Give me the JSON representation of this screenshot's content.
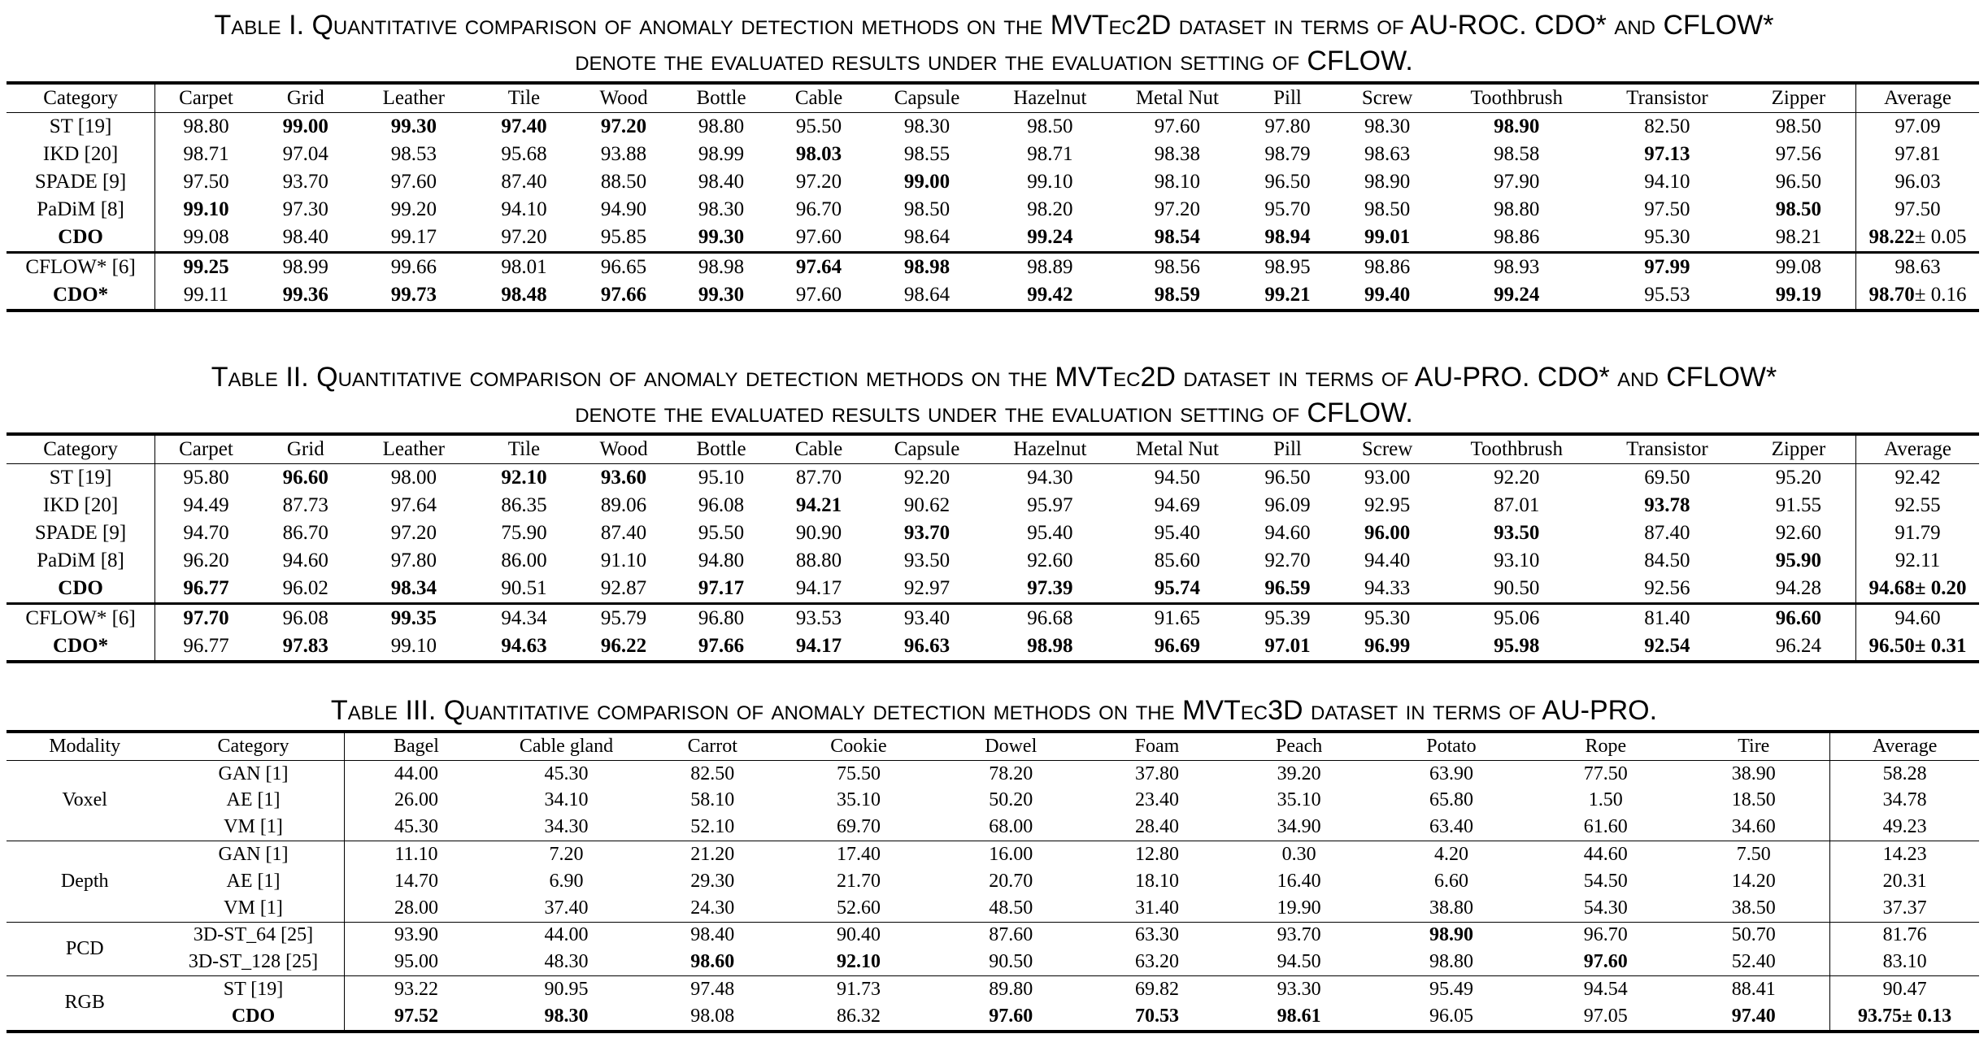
{
  "table1": {
    "caption_l1": "Table I. Quantitative comparison of anomaly detection methods on the MVTec2D dataset in terms of AU-ROC. CDO* and CFLOW*",
    "caption_l2": "denote the evaluated results under the evaluation setting of CFLOW.",
    "headers": [
      "Category",
      "Carpet",
      "Grid",
      "Leather",
      "Tile",
      "Wood",
      "Bottle",
      "Cable",
      "Capsule",
      "Hazelnut",
      "Metal Nut",
      "Pill",
      "Screw",
      "Toothbrush",
      "Transistor",
      "Zipper",
      "Average"
    ],
    "rows": [
      {
        "method": "ST [19]",
        "method_bold": false,
        "values": [
          "98.80",
          "99.00",
          "99.30",
          "97.40",
          "97.20",
          "98.80",
          "95.50",
          "98.30",
          "98.50",
          "97.60",
          "97.80",
          "98.30",
          "98.90",
          "82.50",
          "98.50"
        ],
        "bold": [
          false,
          true,
          true,
          true,
          true,
          false,
          false,
          false,
          false,
          false,
          false,
          false,
          true,
          false,
          false
        ],
        "avg": "97.09",
        "avg_std": "",
        "avg_bold": false
      },
      {
        "method": "IKD [20]",
        "method_bold": false,
        "values": [
          "98.71",
          "97.04",
          "98.53",
          "95.68",
          "93.88",
          "98.99",
          "98.03",
          "98.55",
          "98.71",
          "98.38",
          "98.79",
          "98.63",
          "98.58",
          "97.13",
          "97.56"
        ],
        "bold": [
          false,
          false,
          false,
          false,
          false,
          false,
          true,
          false,
          false,
          false,
          false,
          false,
          false,
          true,
          false
        ],
        "avg": "97.81",
        "avg_std": "",
        "avg_bold": false
      },
      {
        "method": "SPADE [9]",
        "method_bold": false,
        "values": [
          "97.50",
          "93.70",
          "97.60",
          "87.40",
          "88.50",
          "98.40",
          "97.20",
          "99.00",
          "99.10",
          "98.10",
          "96.50",
          "98.90",
          "97.90",
          "94.10",
          "96.50"
        ],
        "bold": [
          false,
          false,
          false,
          false,
          false,
          false,
          false,
          true,
          false,
          false,
          false,
          false,
          false,
          false,
          false
        ],
        "avg": "96.03",
        "avg_std": "",
        "avg_bold": false
      },
      {
        "method": "PaDiM [8]",
        "method_bold": false,
        "values": [
          "99.10",
          "97.30",
          "99.20",
          "94.10",
          "94.90",
          "98.30",
          "96.70",
          "98.50",
          "98.20",
          "97.20",
          "95.70",
          "98.50",
          "98.80",
          "97.50",
          "98.50"
        ],
        "bold": [
          true,
          false,
          false,
          false,
          false,
          false,
          false,
          false,
          false,
          false,
          false,
          false,
          false,
          false,
          true
        ],
        "avg": "97.50",
        "avg_std": "",
        "avg_bold": false
      },
      {
        "method": "CDO",
        "method_bold": true,
        "values": [
          "99.08",
          "98.40",
          "99.17",
          "97.20",
          "95.85",
          "99.30",
          "97.60",
          "98.64",
          "99.24",
          "98.54",
          "98.94",
          "99.01",
          "98.86",
          "95.30",
          "98.21"
        ],
        "bold": [
          false,
          false,
          false,
          false,
          false,
          true,
          false,
          false,
          true,
          true,
          true,
          true,
          false,
          false,
          false
        ],
        "avg": "98.22",
        "avg_std": "± 0.05",
        "avg_bold": true
      }
    ],
    "rows2": [
      {
        "method": "CFLOW* [6]",
        "method_bold": false,
        "values": [
          "99.25",
          "98.99",
          "99.66",
          "98.01",
          "96.65",
          "98.98",
          "97.64",
          "98.98",
          "98.89",
          "98.56",
          "98.95",
          "98.86",
          "98.93",
          "97.99",
          "99.08"
        ],
        "bold": [
          true,
          false,
          false,
          false,
          false,
          false,
          true,
          true,
          false,
          false,
          false,
          false,
          false,
          true,
          false
        ],
        "avg": "98.63",
        "avg_std": "",
        "avg_bold": false
      },
      {
        "method": "CDO*",
        "method_bold": true,
        "values": [
          "99.11",
          "99.36",
          "99.73",
          "98.48",
          "97.66",
          "99.30",
          "97.60",
          "98.64",
          "99.42",
          "98.59",
          "99.21",
          "99.40",
          "99.24",
          "95.53",
          "99.19"
        ],
        "bold": [
          false,
          true,
          true,
          true,
          true,
          true,
          false,
          false,
          true,
          true,
          true,
          true,
          true,
          false,
          true
        ],
        "avg": "98.70",
        "avg_std": "± 0.16",
        "avg_bold": true
      }
    ]
  },
  "table2": {
    "caption_l1": "Table II. Quantitative comparison of anomaly detection methods on the MVTec2D dataset in terms of AU-PRO. CDO* and CFLOW*",
    "caption_l2": "denote the evaluated results under the evaluation setting of CFLOW.",
    "headers": [
      "Category",
      "Carpet",
      "Grid",
      "Leather",
      "Tile",
      "Wood",
      "Bottle",
      "Cable",
      "Capsule",
      "Hazelnut",
      "Metal Nut",
      "Pill",
      "Screw",
      "Toothbrush",
      "Transistor",
      "Zipper",
      "Average"
    ],
    "rows": [
      {
        "method": "ST [19]",
        "method_bold": false,
        "values": [
          "95.80",
          "96.60",
          "98.00",
          "92.10",
          "93.60",
          "95.10",
          "87.70",
          "92.20",
          "94.30",
          "94.50",
          "96.50",
          "93.00",
          "92.20",
          "69.50",
          "95.20"
        ],
        "bold": [
          false,
          true,
          false,
          true,
          true,
          false,
          false,
          false,
          false,
          false,
          false,
          false,
          false,
          false,
          false
        ],
        "avg": "92.42",
        "avg_std": "",
        "avg_bold": false
      },
      {
        "method": "IKD [20]",
        "method_bold": false,
        "values": [
          "94.49",
          "87.73",
          "97.64",
          "86.35",
          "89.06",
          "96.08",
          "94.21",
          "90.62",
          "95.97",
          "94.69",
          "96.09",
          "92.95",
          "87.01",
          "93.78",
          "91.55"
        ],
        "bold": [
          false,
          false,
          false,
          false,
          false,
          false,
          true,
          false,
          false,
          false,
          false,
          false,
          false,
          true,
          false
        ],
        "avg": "92.55",
        "avg_std": "",
        "avg_bold": false
      },
      {
        "method": "SPADE [9]",
        "method_bold": false,
        "values": [
          "94.70",
          "86.70",
          "97.20",
          "75.90",
          "87.40",
          "95.50",
          "90.90",
          "93.70",
          "95.40",
          "95.40",
          "94.60",
          "96.00",
          "93.50",
          "87.40",
          "92.60"
        ],
        "bold": [
          false,
          false,
          false,
          false,
          false,
          false,
          false,
          true,
          false,
          false,
          false,
          true,
          true,
          false,
          false
        ],
        "avg": "91.79",
        "avg_std": "",
        "avg_bold": false
      },
      {
        "method": "PaDiM [8]",
        "method_bold": false,
        "values": [
          "96.20",
          "94.60",
          "97.80",
          "86.00",
          "91.10",
          "94.80",
          "88.80",
          "93.50",
          "92.60",
          "85.60",
          "92.70",
          "94.40",
          "93.10",
          "84.50",
          "95.90"
        ],
        "bold": [
          false,
          false,
          false,
          false,
          false,
          false,
          false,
          false,
          false,
          false,
          false,
          false,
          false,
          false,
          true
        ],
        "avg": "92.11",
        "avg_std": "",
        "avg_bold": false
      },
      {
        "method": "CDO",
        "method_bold": true,
        "values": [
          "96.77",
          "96.02",
          "98.34",
          "90.51",
          "92.87",
          "97.17",
          "94.17",
          "92.97",
          "97.39",
          "95.74",
          "96.59",
          "94.33",
          "90.50",
          "92.56",
          "94.28"
        ],
        "bold": [
          true,
          false,
          true,
          false,
          false,
          true,
          false,
          false,
          true,
          true,
          true,
          false,
          false,
          false,
          false
        ],
        "avg": "94.68",
        "avg_std": "± 0.20",
        "avg_bold": true
      }
    ],
    "rows2": [
      {
        "method": "CFLOW* [6]",
        "method_bold": false,
        "values": [
          "97.70",
          "96.08",
          "99.35",
          "94.34",
          "95.79",
          "96.80",
          "93.53",
          "93.40",
          "96.68",
          "91.65",
          "95.39",
          "95.30",
          "95.06",
          "81.40",
          "96.60"
        ],
        "bold": [
          true,
          false,
          true,
          false,
          false,
          false,
          false,
          false,
          false,
          false,
          false,
          false,
          false,
          false,
          true
        ],
        "avg": "94.60",
        "avg_std": "",
        "avg_bold": false
      },
      {
        "method": "CDO*",
        "method_bold": true,
        "values": [
          "96.77",
          "97.83",
          "99.10",
          "94.63",
          "96.22",
          "97.66",
          "94.17",
          "96.63",
          "98.98",
          "96.69",
          "97.01",
          "96.99",
          "95.98",
          "92.54",
          "96.24"
        ],
        "bold": [
          false,
          true,
          false,
          true,
          true,
          true,
          true,
          true,
          true,
          true,
          true,
          true,
          true,
          true,
          false
        ],
        "avg": "96.50",
        "avg_std": "± 0.31",
        "avg_bold": true
      }
    ]
  },
  "table3": {
    "caption": "Table III. Quantitative comparison of anomaly detection methods on the MVTec3D dataset in terms of AU-PRO.",
    "headers": [
      "Modality",
      "Category",
      "Bagel",
      "Cable gland",
      "Carrot",
      "Cookie",
      "Dowel",
      "Foam",
      "Peach",
      "Potato",
      "Rope",
      "Tire",
      "Average"
    ],
    "groups": [
      {
        "modality": "Voxel",
        "rows": [
          {
            "method": "GAN [1]",
            "method_bold": false,
            "values": [
              "44.00",
              "45.30",
              "82.50",
              "75.50",
              "78.20",
              "37.80",
              "39.20",
              "63.90",
              "77.50",
              "38.90"
            ],
            "bold": [
              false,
              false,
              false,
              false,
              false,
              false,
              false,
              false,
              false,
              false
            ],
            "avg": "58.28",
            "avg_std": "",
            "avg_bold": false
          },
          {
            "method": "AE [1]",
            "method_bold": false,
            "values": [
              "26.00",
              "34.10",
              "58.10",
              "35.10",
              "50.20",
              "23.40",
              "35.10",
              "65.80",
              "1.50",
              "18.50"
            ],
            "bold": [
              false,
              false,
              false,
              false,
              false,
              false,
              false,
              false,
              false,
              false
            ],
            "avg": "34.78",
            "avg_std": "",
            "avg_bold": false
          },
          {
            "method": "VM [1]",
            "method_bold": false,
            "values": [
              "45.30",
              "34.30",
              "52.10",
              "69.70",
              "68.00",
              "28.40",
              "34.90",
              "63.40",
              "61.60",
              "34.60"
            ],
            "bold": [
              false,
              false,
              false,
              false,
              false,
              false,
              false,
              false,
              false,
              false
            ],
            "avg": "49.23",
            "avg_std": "",
            "avg_bold": false
          }
        ]
      },
      {
        "modality": "Depth",
        "rows": [
          {
            "method": "GAN [1]",
            "method_bold": false,
            "values": [
              "11.10",
              "7.20",
              "21.20",
              "17.40",
              "16.00",
              "12.80",
              "0.30",
              "4.20",
              "44.60",
              "7.50"
            ],
            "bold": [
              false,
              false,
              false,
              false,
              false,
              false,
              false,
              false,
              false,
              false
            ],
            "avg": "14.23",
            "avg_std": "",
            "avg_bold": false
          },
          {
            "method": "AE [1]",
            "method_bold": false,
            "values": [
              "14.70",
              "6.90",
              "29.30",
              "21.70",
              "20.70",
              "18.10",
              "16.40",
              "6.60",
              "54.50",
              "14.20"
            ],
            "bold": [
              false,
              false,
              false,
              false,
              false,
              false,
              false,
              false,
              false,
              false
            ],
            "avg": "20.31",
            "avg_std": "",
            "avg_bold": false
          },
          {
            "method": "VM [1]",
            "method_bold": false,
            "values": [
              "28.00",
              "37.40",
              "24.30",
              "52.60",
              "48.50",
              "31.40",
              "19.90",
              "38.80",
              "54.30",
              "38.50"
            ],
            "bold": [
              false,
              false,
              false,
              false,
              false,
              false,
              false,
              false,
              false,
              false
            ],
            "avg": "37.37",
            "avg_std": "",
            "avg_bold": false
          }
        ]
      },
      {
        "modality": "PCD",
        "rows": [
          {
            "method": "3D-ST_64 [25]",
            "method_bold": false,
            "values": [
              "93.90",
              "44.00",
              "98.40",
              "90.40",
              "87.60",
              "63.30",
              "93.70",
              "98.90",
              "96.70",
              "50.70"
            ],
            "bold": [
              false,
              false,
              false,
              false,
              false,
              false,
              false,
              true,
              false,
              false
            ],
            "avg": "81.76",
            "avg_std": "",
            "avg_bold": false
          },
          {
            "method": "3D-ST_128 [25]",
            "method_bold": false,
            "values": [
              "95.00",
              "48.30",
              "98.60",
              "92.10",
              "90.50",
              "63.20",
              "94.50",
              "98.80",
              "97.60",
              "52.40"
            ],
            "bold": [
              false,
              false,
              true,
              true,
              false,
              false,
              false,
              false,
              true,
              false
            ],
            "avg": "83.10",
            "avg_std": "",
            "avg_bold": false
          }
        ]
      },
      {
        "modality": "RGB",
        "rows": [
          {
            "method": "ST [19]",
            "method_bold": false,
            "values": [
              "93.22",
              "90.95",
              "97.48",
              "91.73",
              "89.80",
              "69.82",
              "93.30",
              "95.49",
              "94.54",
              "88.41"
            ],
            "bold": [
              false,
              false,
              false,
              false,
              false,
              false,
              false,
              false,
              false,
              false
            ],
            "avg": "90.47",
            "avg_std": "",
            "avg_bold": false
          },
          {
            "method": "CDO",
            "method_bold": true,
            "values": [
              "97.52",
              "98.30",
              "98.08",
              "86.32",
              "97.60",
              "70.53",
              "98.61",
              "96.05",
              "97.05",
              "97.40"
            ],
            "bold": [
              true,
              true,
              false,
              false,
              true,
              true,
              true,
              false,
              false,
              true
            ],
            "avg": "93.75",
            "avg_std": "± 0.13",
            "avg_bold": true
          }
        ]
      }
    ]
  }
}
